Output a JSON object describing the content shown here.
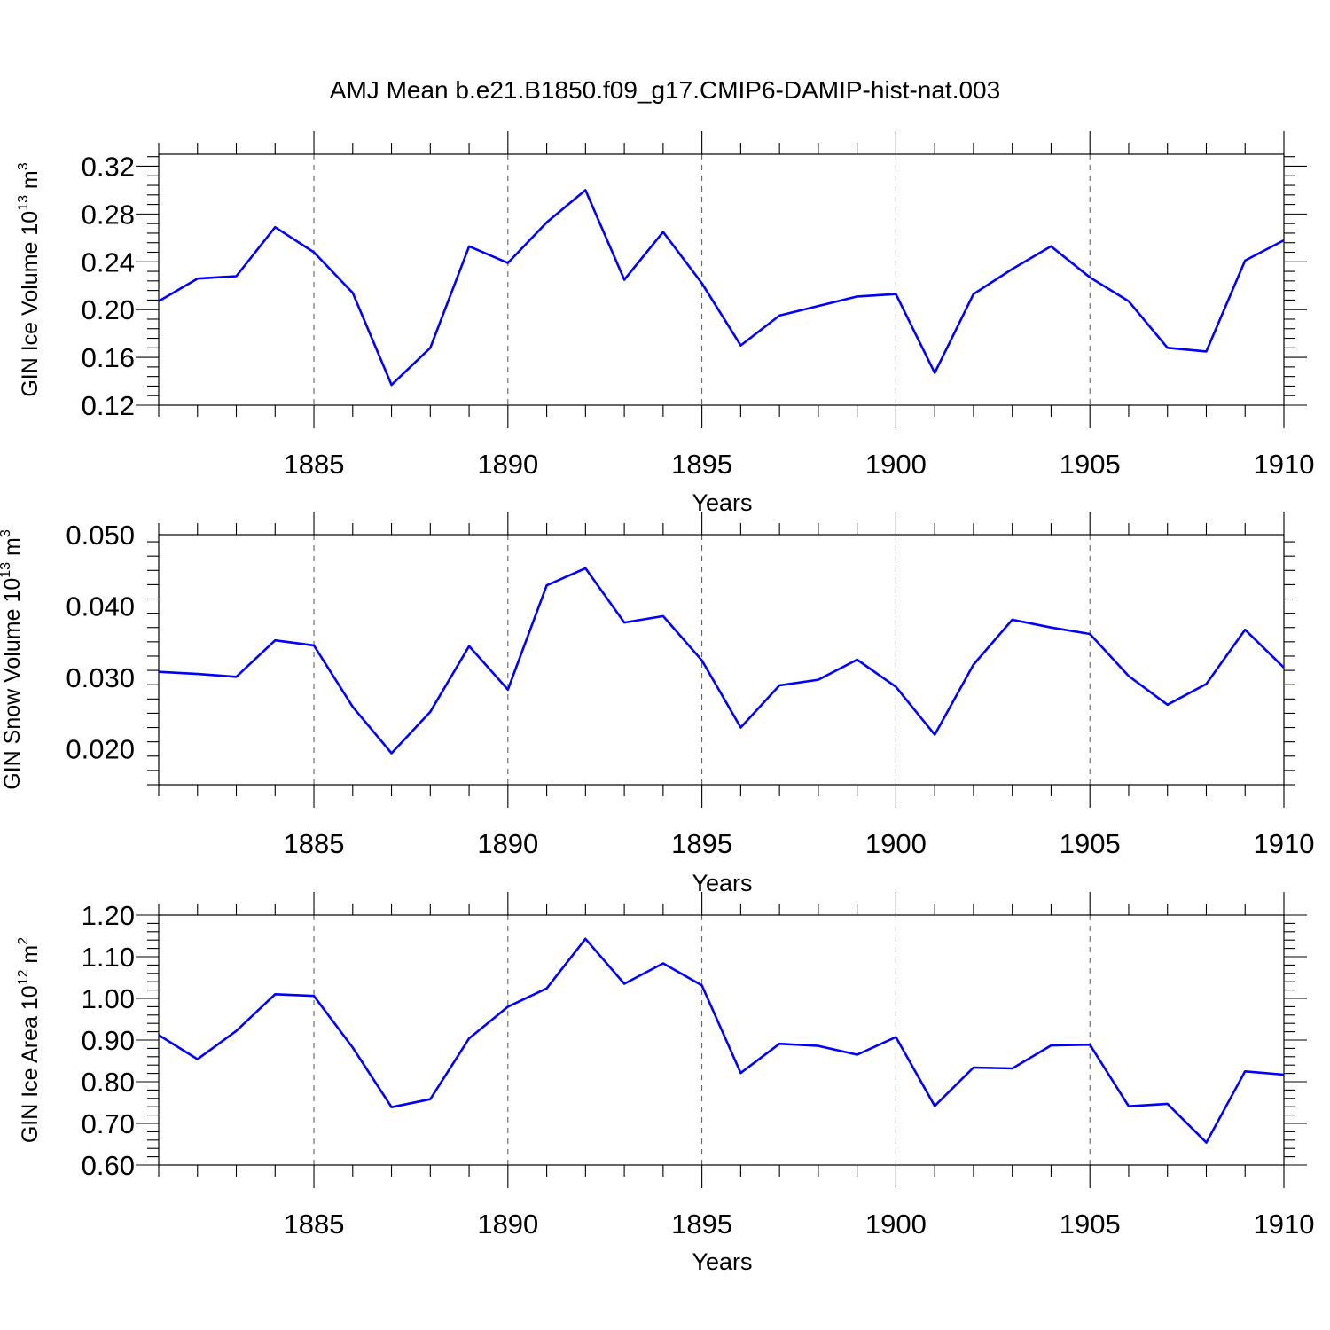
{
  "title": "AMJ Mean b.e21.B1850.f09_g17.CMIP6-DAMIP-hist-nat.003",
  "colors": {
    "line": "#0000ff",
    "grid": "#555555",
    "axis": "#000000"
  },
  "chart_data": [
    {
      "type": "line",
      "xlabel": "Years",
      "ylabel": {
        "base": "GIN Ice Volume 10",
        "exp": "13",
        "unit": " m",
        "unit_exp": "3"
      },
      "xlim": [
        1881,
        1910
      ],
      "ylim": [
        0.12,
        0.33
      ],
      "xticks": [
        1885,
        1890,
        1895,
        1900,
        1905,
        1910
      ],
      "xtick_labels": [
        "1885",
        "1890",
        "1895",
        "1900",
        "1905",
        "1910"
      ],
      "yticks": [
        0.12,
        0.16,
        0.2,
        0.24,
        0.28,
        0.32
      ],
      "ytick_labels": [
        "0.12",
        "0.16",
        "0.20",
        "0.24",
        "0.28",
        "0.32"
      ],
      "grid": "vertical dashed at major x ticks",
      "x": [
        1881,
        1882,
        1883,
        1884,
        1885,
        1886,
        1887,
        1888,
        1889,
        1890,
        1891,
        1892,
        1893,
        1894,
        1895,
        1896,
        1897,
        1898,
        1899,
        1900,
        1901,
        1902,
        1903,
        1904,
        1905,
        1906,
        1907,
        1908,
        1909,
        1910
      ],
      "series": [
        {
          "values": [
            0.207,
            0.226,
            0.228,
            0.269,
            0.248,
            0.214,
            0.137,
            0.168,
            0.253,
            0.239,
            0.273,
            0.3,
            0.225,
            0.265,
            0.222,
            0.17,
            0.195,
            0.203,
            0.211,
            0.213,
            0.147,
            0.213,
            0.234,
            0.253,
            0.227,
            0.207,
            0.168,
            0.165,
            0.241,
            0.258
          ]
        }
      ]
    },
    {
      "type": "line",
      "xlabel": "Years",
      "ylabel": {
        "base": "GIN Snow Volume 10",
        "exp": "13",
        "unit": " m",
        "unit_exp": "3"
      },
      "xlim": [
        1881,
        1910
      ],
      "ylim": [
        0.015,
        0.05
      ],
      "xticks": [
        1885,
        1890,
        1895,
        1900,
        1905,
        1910
      ],
      "xtick_labels": [
        "1885",
        "1890",
        "1895",
        "1900",
        "1905",
        "1910"
      ],
      "yticks": [
        0.02,
        0.03,
        0.04,
        0.05
      ],
      "ytick_labels": [
        "0.020",
        "0.030",
        "0.040",
        "0.050"
      ],
      "grid": "vertical dashed at major x ticks",
      "x": [
        1881,
        1882,
        1883,
        1884,
        1885,
        1886,
        1887,
        1888,
        1889,
        1890,
        1891,
        1892,
        1893,
        1894,
        1895,
        1896,
        1897,
        1898,
        1899,
        1900,
        1901,
        1902,
        1903,
        1904,
        1905,
        1906,
        1907,
        1908,
        1909,
        1910
      ],
      "series": [
        {
          "values": [
            0.0308,
            0.0305,
            0.0301,
            0.0352,
            0.0345,
            0.0259,
            0.0194,
            0.0252,
            0.0344,
            0.0283,
            0.0429,
            0.0453,
            0.0377,
            0.0386,
            0.0324,
            0.023,
            0.0289,
            0.0297,
            0.0325,
            0.0287,
            0.022,
            0.0318,
            0.0381,
            0.037,
            0.0361,
            0.0302,
            0.0262,
            0.0291,
            0.0367,
            0.0314
          ]
        }
      ]
    },
    {
      "type": "line",
      "xlabel": "Years",
      "ylabel": {
        "base": "GIN Ice Area 10",
        "exp": "12",
        "unit": " m",
        "unit_exp": "2"
      },
      "xlim": [
        1881,
        1910
      ],
      "ylim": [
        0.6,
        1.2
      ],
      "xticks": [
        1885,
        1890,
        1895,
        1900,
        1905,
        1910
      ],
      "xtick_labels": [
        "1885",
        "1890",
        "1895",
        "1900",
        "1905",
        "1910"
      ],
      "yticks": [
        0.6,
        0.7,
        0.8,
        0.9,
        1.0,
        1.1,
        1.2
      ],
      "ytick_labels": [
        "0.60",
        "0.70",
        "0.80",
        "0.90",
        "1.00",
        "1.10",
        "1.20"
      ],
      "grid": "vertical dashed at major x ticks",
      "x": [
        1881,
        1882,
        1883,
        1884,
        1885,
        1886,
        1887,
        1888,
        1889,
        1890,
        1891,
        1892,
        1893,
        1894,
        1895,
        1896,
        1897,
        1898,
        1899,
        1900,
        1901,
        1902,
        1903,
        1904,
        1905,
        1906,
        1907,
        1908,
        1909,
        1910
      ],
      "series": [
        {
          "values": [
            0.912,
            0.854,
            0.922,
            1.01,
            1.006,
            0.882,
            0.739,
            0.758,
            0.904,
            0.98,
            1.024,
            1.143,
            1.035,
            1.084,
            1.031,
            0.821,
            0.891,
            0.886,
            0.865,
            0.907,
            0.742,
            0.834,
            0.832,
            0.887,
            0.889,
            0.741,
            0.747,
            0.654,
            0.825,
            0.817
          ]
        }
      ]
    }
  ]
}
